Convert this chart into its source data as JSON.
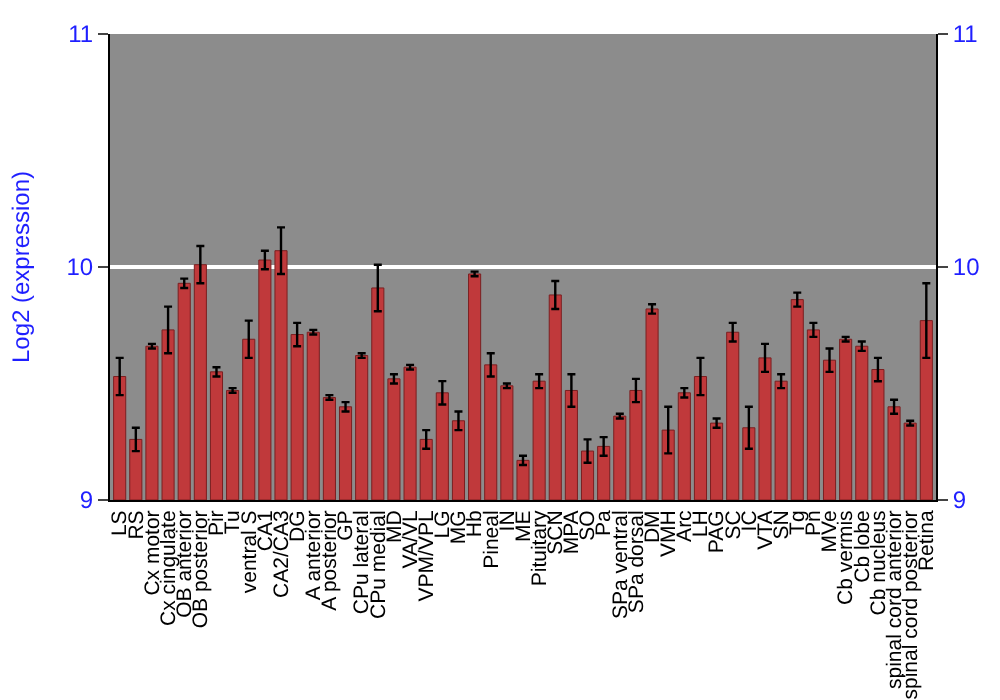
{
  "chart_data": {
    "type": "bar",
    "ylabel": "Log2 (expression)",
    "categories": [
      "LS",
      "RS",
      "Cx motor",
      "Cx cingulate",
      "OB anterior",
      "OB posterior",
      "Pir",
      "Tu",
      "ventral S",
      "CA1",
      "CA2/CA3",
      "DG",
      "A anterior",
      "A posterior",
      "GP",
      "CPu lateral",
      "CPu medial",
      "MD",
      "VA/VL",
      "VPM/VPL",
      "LG",
      "MG",
      "Hb",
      "Pineal",
      "IN",
      "ME",
      "Pituitary",
      "SCN",
      "MPA",
      "SO",
      "Pa",
      "SPa ventral",
      "SPa dorsal",
      "DM",
      "VMH",
      "Arc",
      "LH",
      "PAG",
      "SC",
      "IC",
      "VTA",
      "SN",
      "Tg",
      "Pn",
      "MVe",
      "Cb vermis",
      "Cb lobe",
      "Cb nucleus",
      "spinal cord anterior",
      "spinal cord posterior",
      "Retina"
    ],
    "values": [
      9.53,
      9.26,
      9.66,
      9.73,
      9.93,
      10.01,
      9.55,
      9.47,
      9.69,
      10.03,
      10.07,
      9.71,
      9.72,
      9.44,
      9.4,
      9.62,
      9.91,
      9.52,
      9.57,
      9.26,
      9.46,
      9.34,
      9.97,
      9.58,
      9.49,
      9.17,
      9.51,
      9.88,
      9.47,
      9.21,
      9.23,
      9.36,
      9.47,
      9.82,
      9.3,
      9.46,
      9.53,
      9.33,
      9.72,
      9.31,
      9.61,
      9.51,
      9.86,
      9.73,
      9.6,
      9.69,
      9.66,
      9.56,
      9.4,
      9.33,
      9.77
    ],
    "errors": [
      0.08,
      0.05,
      0.01,
      0.1,
      0.02,
      0.08,
      0.02,
      0.01,
      0.08,
      0.04,
      0.1,
      0.05,
      0.01,
      0.01,
      0.02,
      0.01,
      0.1,
      0.02,
      0.01,
      0.04,
      0.05,
      0.04,
      0.01,
      0.05,
      0.01,
      0.02,
      0.03,
      0.06,
      0.07,
      0.05,
      0.04,
      0.01,
      0.05,
      0.02,
      0.1,
      0.02,
      0.08,
      0.02,
      0.04,
      0.09,
      0.06,
      0.03,
      0.03,
      0.03,
      0.05,
      0.01,
      0.02,
      0.05,
      0.03,
      0.01,
      0.16
    ],
    "color": "#c0393b",
    "ylim": [
      9,
      11
    ],
    "yticks": [
      9,
      10,
      11
    ],
    "y2lim": [
      9,
      11
    ],
    "y2ticks": [
      9,
      10,
      11
    ],
    "grid": "y",
    "legend": false
  }
}
